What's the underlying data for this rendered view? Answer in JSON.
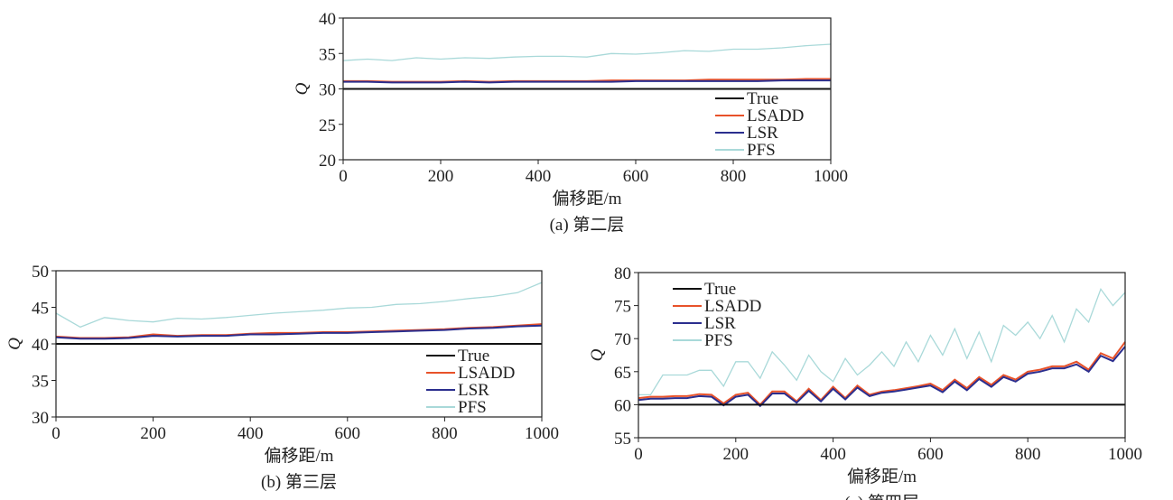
{
  "colors": {
    "True": "#111111",
    "LSADD": "#e8522a",
    "LSR": "#2b2e8e",
    "PFS": "#a9d9d9"
  },
  "chart_data": [
    {
      "type": "line",
      "caption": "(a) 第二层",
      "xlabel": "偏移距/m",
      "ylabel": "Q",
      "xlim": [
        0,
        1000
      ],
      "ylim": [
        20,
        40
      ],
      "xticks": [
        0,
        200,
        400,
        600,
        800,
        1000
      ],
      "yticks": [
        20,
        25,
        30,
        35,
        40
      ],
      "legend": "bottom-right",
      "grid": false,
      "x": [
        0,
        50,
        100,
        150,
        200,
        250,
        300,
        350,
        400,
        450,
        500,
        550,
        600,
        650,
        700,
        750,
        800,
        850,
        900,
        950,
        1000
      ],
      "series": [
        {
          "name": "True",
          "values": [
            30,
            30,
            30,
            30,
            30,
            30,
            30,
            30,
            30,
            30,
            30,
            30,
            30,
            30,
            30,
            30,
            30,
            30,
            30,
            30,
            30
          ]
        },
        {
          "name": "LSADD",
          "values": [
            31.1,
            31.1,
            31.0,
            31.0,
            31.0,
            31.1,
            31.0,
            31.1,
            31.1,
            31.1,
            31.1,
            31.2,
            31.2,
            31.2,
            31.2,
            31.3,
            31.3,
            31.3,
            31.3,
            31.4,
            31.4
          ]
        },
        {
          "name": "LSR",
          "values": [
            31.0,
            31.0,
            30.9,
            30.9,
            30.9,
            31.0,
            30.9,
            31.0,
            31.0,
            31.0,
            31.0,
            31.0,
            31.1,
            31.1,
            31.1,
            31.1,
            31.1,
            31.1,
            31.2,
            31.2,
            31.2
          ]
        },
        {
          "name": "PFS",
          "values": [
            34.0,
            34.2,
            34.0,
            34.4,
            34.2,
            34.4,
            34.3,
            34.5,
            34.6,
            34.6,
            34.5,
            35.0,
            34.9,
            35.1,
            35.4,
            35.3,
            35.6,
            35.6,
            35.8,
            36.1,
            36.3
          ]
        }
      ]
    },
    {
      "type": "line",
      "caption": "(b) 第三层",
      "xlabel": "偏移距/m",
      "ylabel": "Q",
      "xlim": [
        0,
        1000
      ],
      "ylim": [
        30,
        50
      ],
      "xticks": [
        0,
        200,
        400,
        600,
        800,
        1000
      ],
      "yticks": [
        30,
        35,
        40,
        45,
        50
      ],
      "legend": "bottom-right",
      "grid": false,
      "x": [
        0,
        50,
        100,
        150,
        200,
        250,
        300,
        350,
        400,
        450,
        500,
        550,
        600,
        650,
        700,
        750,
        800,
        850,
        900,
        950,
        1000
      ],
      "series": [
        {
          "name": "True",
          "values": [
            40,
            40,
            40,
            40,
            40,
            40,
            40,
            40,
            40,
            40,
            40,
            40,
            40,
            40,
            40,
            40,
            40,
            40,
            40,
            40,
            40
          ]
        },
        {
          "name": "LSADD",
          "values": [
            41.0,
            40.8,
            40.8,
            40.9,
            41.3,
            41.1,
            41.2,
            41.2,
            41.4,
            41.5,
            41.5,
            41.6,
            41.6,
            41.7,
            41.8,
            41.9,
            42.0,
            42.2,
            42.3,
            42.5,
            42.7
          ]
        },
        {
          "name": "LSR",
          "values": [
            40.9,
            40.7,
            40.7,
            40.8,
            41.1,
            41.0,
            41.1,
            41.1,
            41.3,
            41.3,
            41.4,
            41.5,
            41.5,
            41.6,
            41.7,
            41.8,
            41.9,
            42.1,
            42.2,
            42.4,
            42.5
          ]
        },
        {
          "name": "PFS",
          "values": [
            44.2,
            42.3,
            43.6,
            43.2,
            43.0,
            43.5,
            43.4,
            43.6,
            43.9,
            44.2,
            44.4,
            44.6,
            44.9,
            45.0,
            45.4,
            45.5,
            45.8,
            46.2,
            46.5,
            47.0,
            48.4
          ]
        }
      ]
    },
    {
      "type": "line",
      "caption": "(c) 第四层",
      "xlabel": "偏移距/m",
      "ylabel": "Q",
      "xlim": [
        0,
        1000
      ],
      "ylim": [
        55,
        80
      ],
      "xticks": [
        0,
        200,
        400,
        600,
        800,
        1000
      ],
      "yticks": [
        55,
        60,
        65,
        70,
        75,
        80
      ],
      "legend": "top-left",
      "grid": false,
      "x": [
        0,
        25,
        50,
        75,
        100,
        125,
        150,
        175,
        200,
        225,
        250,
        275,
        300,
        325,
        350,
        375,
        400,
        425,
        450,
        475,
        500,
        525,
        550,
        575,
        600,
        625,
        650,
        675,
        700,
        725,
        750,
        775,
        800,
        825,
        850,
        875,
        900,
        925,
        950,
        975,
        1000
      ],
      "series": [
        {
          "name": "True",
          "values": [
            60,
            60,
            60,
            60,
            60,
            60,
            60,
            60,
            60,
            60,
            60,
            60,
            60,
            60,
            60,
            60,
            60,
            60,
            60,
            60,
            60,
            60,
            60,
            60,
            60,
            60,
            60,
            60,
            60,
            60,
            60,
            60,
            60,
            60,
            60,
            60,
            60,
            60,
            60,
            60,
            60
          ]
        },
        {
          "name": "LSADD",
          "values": [
            61.0,
            61.2,
            61.2,
            61.3,
            61.3,
            61.6,
            61.5,
            60.2,
            61.5,
            61.8,
            60.0,
            62.0,
            62.0,
            60.5,
            62.4,
            60.7,
            62.7,
            61.0,
            62.9,
            61.5,
            62.0,
            62.2,
            62.5,
            62.8,
            63.2,
            62.2,
            63.8,
            62.5,
            64.2,
            63.0,
            64.5,
            63.8,
            65.0,
            65.3,
            65.8,
            65.8,
            66.5,
            65.3,
            67.8,
            67.0,
            69.5
          ]
        },
        {
          "name": "LSR",
          "values": [
            60.7,
            60.9,
            60.9,
            61.0,
            61.0,
            61.3,
            61.2,
            59.9,
            61.2,
            61.5,
            59.8,
            61.7,
            61.7,
            60.3,
            62.1,
            60.5,
            62.4,
            60.8,
            62.6,
            61.3,
            61.8,
            62.0,
            62.3,
            62.6,
            62.9,
            61.9,
            63.5,
            62.2,
            63.9,
            62.7,
            64.2,
            63.5,
            64.7,
            65.0,
            65.5,
            65.5,
            66.1,
            65.0,
            67.4,
            66.6,
            68.8
          ]
        },
        {
          "name": "PFS",
          "values": [
            61.5,
            61.5,
            64.5,
            64.5,
            64.5,
            65.2,
            65.2,
            62.8,
            66.5,
            66.5,
            64.0,
            68.0,
            66.0,
            63.7,
            67.5,
            65.0,
            63.5,
            67.0,
            64.5,
            66.0,
            68.0,
            65.8,
            69.5,
            66.5,
            70.5,
            67.5,
            71.5,
            67.0,
            71.0,
            66.5,
            72.0,
            70.5,
            72.5,
            70.0,
            73.5,
            69.5,
            74.5,
            72.5,
            77.5,
            75.0,
            77.0
          ]
        }
      ]
    }
  ]
}
